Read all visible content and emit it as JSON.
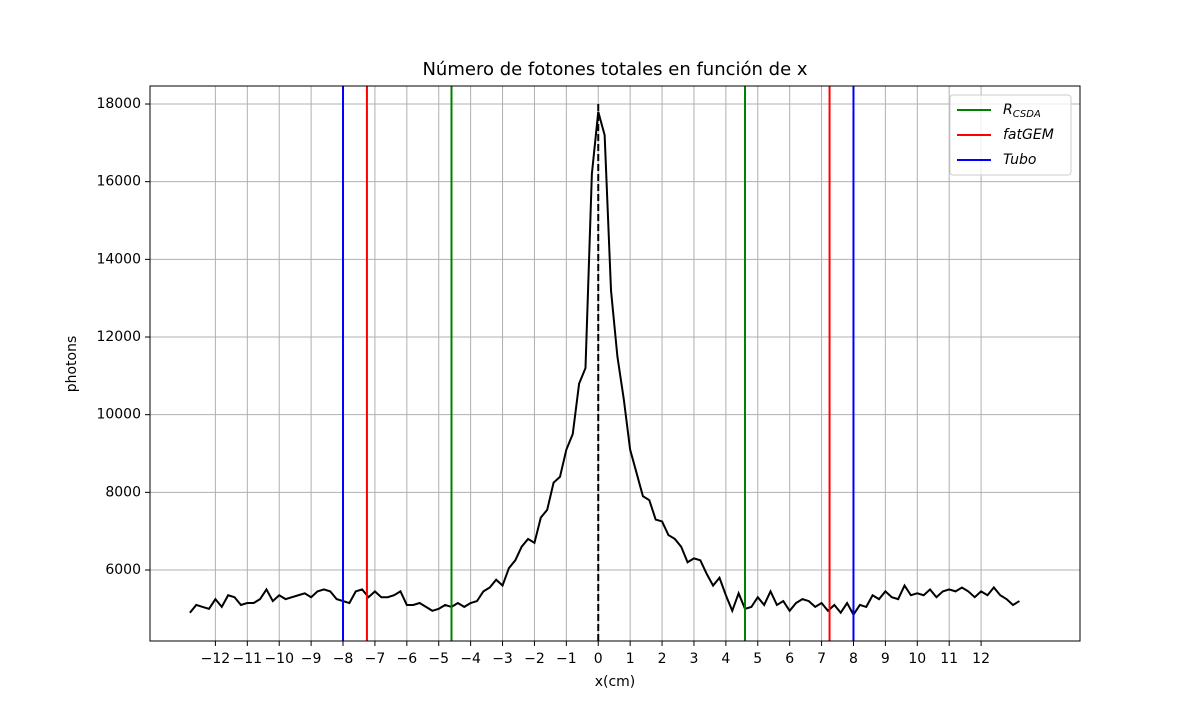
{
  "chart_data": {
    "type": "line",
    "title": "Número de fotones totales en función de x",
    "xlabel": "x(cm)",
    "ylabel": "photons",
    "x": [
      -12.8,
      -12.6,
      -12.4,
      -12.2,
      -12,
      -11.8,
      -11.6,
      -11.4,
      -11.2,
      -11,
      -10.8,
      -10.6,
      -10.4,
      -10.2,
      -10,
      -9.8,
      -9.6,
      -9.4,
      -9.2,
      -9,
      -8.8,
      -8.6,
      -8.4,
      -8.2,
      -8,
      -7.8,
      -7.6,
      -7.4,
      -7.2,
      -7,
      -6.8,
      -6.6,
      -6.4,
      -6.2,
      -6,
      -5.8,
      -5.6,
      -5.4,
      -5.2,
      -5,
      -4.8,
      -4.6,
      -4.4,
      -4.2,
      -4,
      -3.8,
      -3.6,
      -3.4,
      -3.2,
      -3,
      -2.8,
      -2.6,
      -2.4,
      -2.2,
      -2,
      -1.8,
      -1.6,
      -1.4,
      -1.2,
      -1,
      -0.8,
      -0.6,
      -0.4,
      -0.2,
      0,
      0.2,
      0.4,
      0.6,
      0.8,
      1,
      1.2,
      1.4,
      1.6,
      1.8,
      2,
      2.2,
      2.4,
      2.6,
      2.8,
      3,
      3.2,
      3.4,
      3.6,
      3.8,
      4,
      4.2,
      4.4,
      4.6,
      4.8,
      5,
      5.2,
      5.4,
      5.6,
      5.8,
      6,
      6.2,
      6.4,
      6.6,
      6.8,
      7,
      7.2,
      7.4,
      7.6,
      7.8,
      8,
      8.2,
      8.4,
      8.6,
      8.8,
      9,
      9.2,
      9.4,
      9.6,
      9.8,
      10,
      10.2,
      10.4,
      10.6,
      10.8,
      11,
      11.2,
      11.4,
      11.6,
      11.8,
      12,
      12.2,
      12.4,
      12.6,
      12.8,
      13,
      13.2
    ],
    "series": [
      {
        "color": "#000000",
        "values": [
          4900,
          5100,
          5050,
          5000,
          5250,
          5050,
          5350,
          5300,
          5100,
          5150,
          5150,
          5250,
          5500,
          5200,
          5350,
          5250,
          5300,
          5350,
          5400,
          5300,
          5450,
          5500,
          5450,
          5250,
          5200,
          5150,
          5450,
          5500,
          5300,
          5450,
          5300,
          5300,
          5350,
          5450,
          5100,
          5100,
          5150,
          5050,
          4950,
          5000,
          5100,
          5050,
          5150,
          5050,
          5150,
          5200,
          5450,
          5550,
          5750,
          5600,
          6050,
          6250,
          6600,
          6800,
          6700,
          7350,
          7550,
          8250,
          8400,
          9100,
          9500,
          10800,
          11200,
          16200,
          17800,
          17200,
          13200,
          11500,
          10400,
          9100,
          8500,
          7900,
          7800,
          7300,
          7250,
          6900,
          6800,
          6600,
          6200,
          6300,
          6250,
          5900,
          5600,
          5800,
          5350,
          4950,
          5400,
          5000,
          5050,
          5300,
          5100,
          5450,
          5100,
          5200,
          4950,
          5150,
          5250,
          5200,
          5050,
          5150,
          4950,
          5100,
          4900,
          5150,
          4850,
          5100,
          5050,
          5350,
          5250,
          5450,
          5300,
          5250,
          5600,
          5350,
          5400,
          5350,
          5500,
          5300,
          5450,
          5500,
          5450,
          5550,
          5450,
          5300,
          5450,
          5350,
          5550,
          5350,
          5250,
          5100,
          5200
        ]
      }
    ],
    "vlines": [
      {
        "name": "R",
        "subscript": "CSDA",
        "color": "#008000",
        "x": [
          -4.6,
          4.6
        ]
      },
      {
        "name": "fatGEM",
        "color": "#ff0000",
        "x": [
          -7.25,
          7.25
        ]
      },
      {
        "name": "Tubo",
        "color": "#0000ff",
        "x": [
          -8,
          8
        ]
      }
    ],
    "center_line": {
      "x": 0,
      "y": 18000,
      "color": "#000000",
      "style": "dashed"
    },
    "xlim": [
      -14.05,
      15.1
    ],
    "ylim": [
      4172,
      18464
    ],
    "xticks": [
      {
        "value": -12,
        "label": "−12"
      },
      {
        "value": -11,
        "label": "−11"
      },
      {
        "value": -10,
        "label": "−10"
      },
      {
        "value": -9,
        "label": "−9"
      },
      {
        "value": -8,
        "label": "−8"
      },
      {
        "value": -7,
        "label": "−7"
      },
      {
        "value": -6,
        "label": "−6"
      },
      {
        "value": -5,
        "label": "−5"
      },
      {
        "value": -4,
        "label": "−4"
      },
      {
        "value": -3,
        "label": "−3"
      },
      {
        "value": -2,
        "label": "−2"
      },
      {
        "value": -1,
        "label": "−1"
      },
      0,
      1,
      2,
      3,
      4,
      5,
      6,
      7,
      8,
      9,
      10,
      11,
      12
    ],
    "yticks": [
      6000,
      8000,
      10000,
      12000,
      14000,
      16000,
      18000
    ],
    "grid": true,
    "legend": "upper right"
  }
}
